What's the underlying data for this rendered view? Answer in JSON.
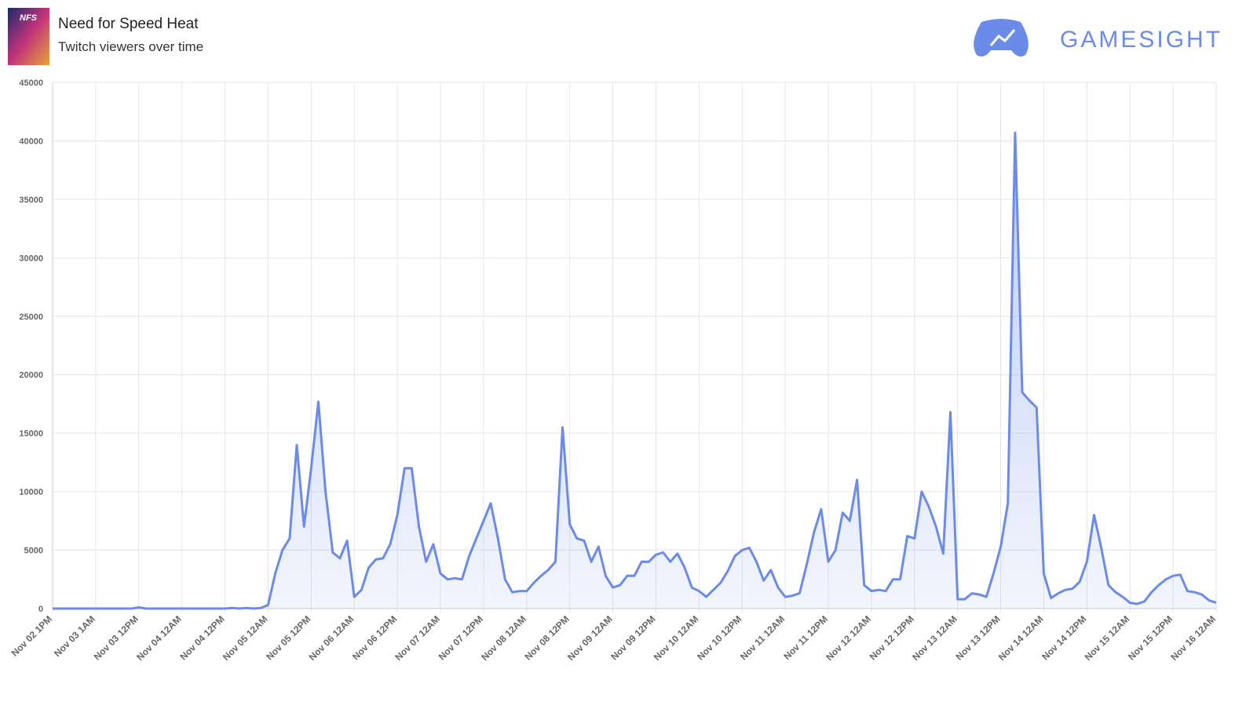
{
  "header": {
    "icon_text": "NFS",
    "title": "Need for Speed Heat",
    "subtitle": "Twitch viewers over time",
    "brand": "GAMESIGHT"
  },
  "chart_data": {
    "type": "area",
    "color": "#6b8be9",
    "grid": true,
    "ylim": [
      0,
      45000
    ],
    "yticks": [
      0,
      5000,
      10000,
      15000,
      20000,
      25000,
      30000,
      35000,
      40000,
      45000
    ],
    "ticklabels": [
      "Nov 02 1PM",
      "Nov 03 1AM",
      "Nov 03 12PM",
      "Nov 04 12AM",
      "Nov 04 12PM",
      "Nov 05 12AM",
      "Nov 05 12PM",
      "Nov 06 12AM",
      "Nov 06 12PM",
      "Nov 07 12AM",
      "Nov 07 12PM",
      "Nov 08 12AM",
      "Nov 08 12PM",
      "Nov 09 12AM",
      "Nov 09 12PM",
      "Nov 10 12AM",
      "Nov 10 12PM",
      "Nov 11 12AM",
      "Nov 11 12PM",
      "Nov 12 12AM",
      "Nov 12 12PM",
      "Nov 13 12AM",
      "Nov 13 12PM",
      "Nov 14 12AM",
      "Nov 14 12PM",
      "Nov 15 12AM",
      "Nov 15 12PM",
      "Nov 16 12AM"
    ],
    "values": [
      0,
      0,
      0,
      0,
      0,
      0,
      0,
      0,
      0,
      0,
      0,
      0,
      100,
      0,
      0,
      0,
      0,
      0,
      0,
      0,
      0,
      0,
      0,
      0,
      0,
      50,
      0,
      50,
      0,
      50,
      300,
      3000,
      5000,
      6000,
      14000,
      7000,
      12000,
      17700,
      10000,
      4800,
      4300,
      5800,
      1000,
      1600,
      3500,
      4200,
      4300,
      5500,
      8000,
      12000,
      12000,
      7000,
      4000,
      5500,
      3000,
      2500,
      2600,
      2500,
      4500,
      6000,
      7500,
      9000,
      6000,
      2500,
      1400,
      1500,
      1500,
      2200,
      2800,
      3300,
      4000,
      15500,
      7200,
      6000,
      5800,
      4000,
      5300,
      2800,
      1800,
      2000,
      2800,
      2800,
      4000,
      4000,
      4600,
      4800,
      4000,
      4700,
      3500,
      1800,
      1500,
      1000,
      1600,
      2200,
      3200,
      4500,
      5000,
      5200,
      4000,
      2400,
      3300,
      1800,
      1000,
      1100,
      1300,
      3800,
      6500,
      8500,
      4000,
      5000,
      8200,
      7500,
      11000,
      2000,
      1500,
      1600,
      1500,
      2500,
      2500,
      6200,
      6000,
      10000,
      8700,
      7000,
      4700,
      16800,
      800,
      800,
      1300,
      1200,
      1000,
      3000,
      5300,
      9000,
      40700,
      18500,
      17800,
      17200,
      3000,
      900,
      1300,
      1600,
      1700,
      2300,
      4000,
      8000,
      5200,
      2000,
      1400,
      1000,
      500,
      400,
      600,
      1400,
      2000,
      2500,
      2800,
      2900,
      1500,
      1400,
      1200,
      700,
      500
    ]
  }
}
